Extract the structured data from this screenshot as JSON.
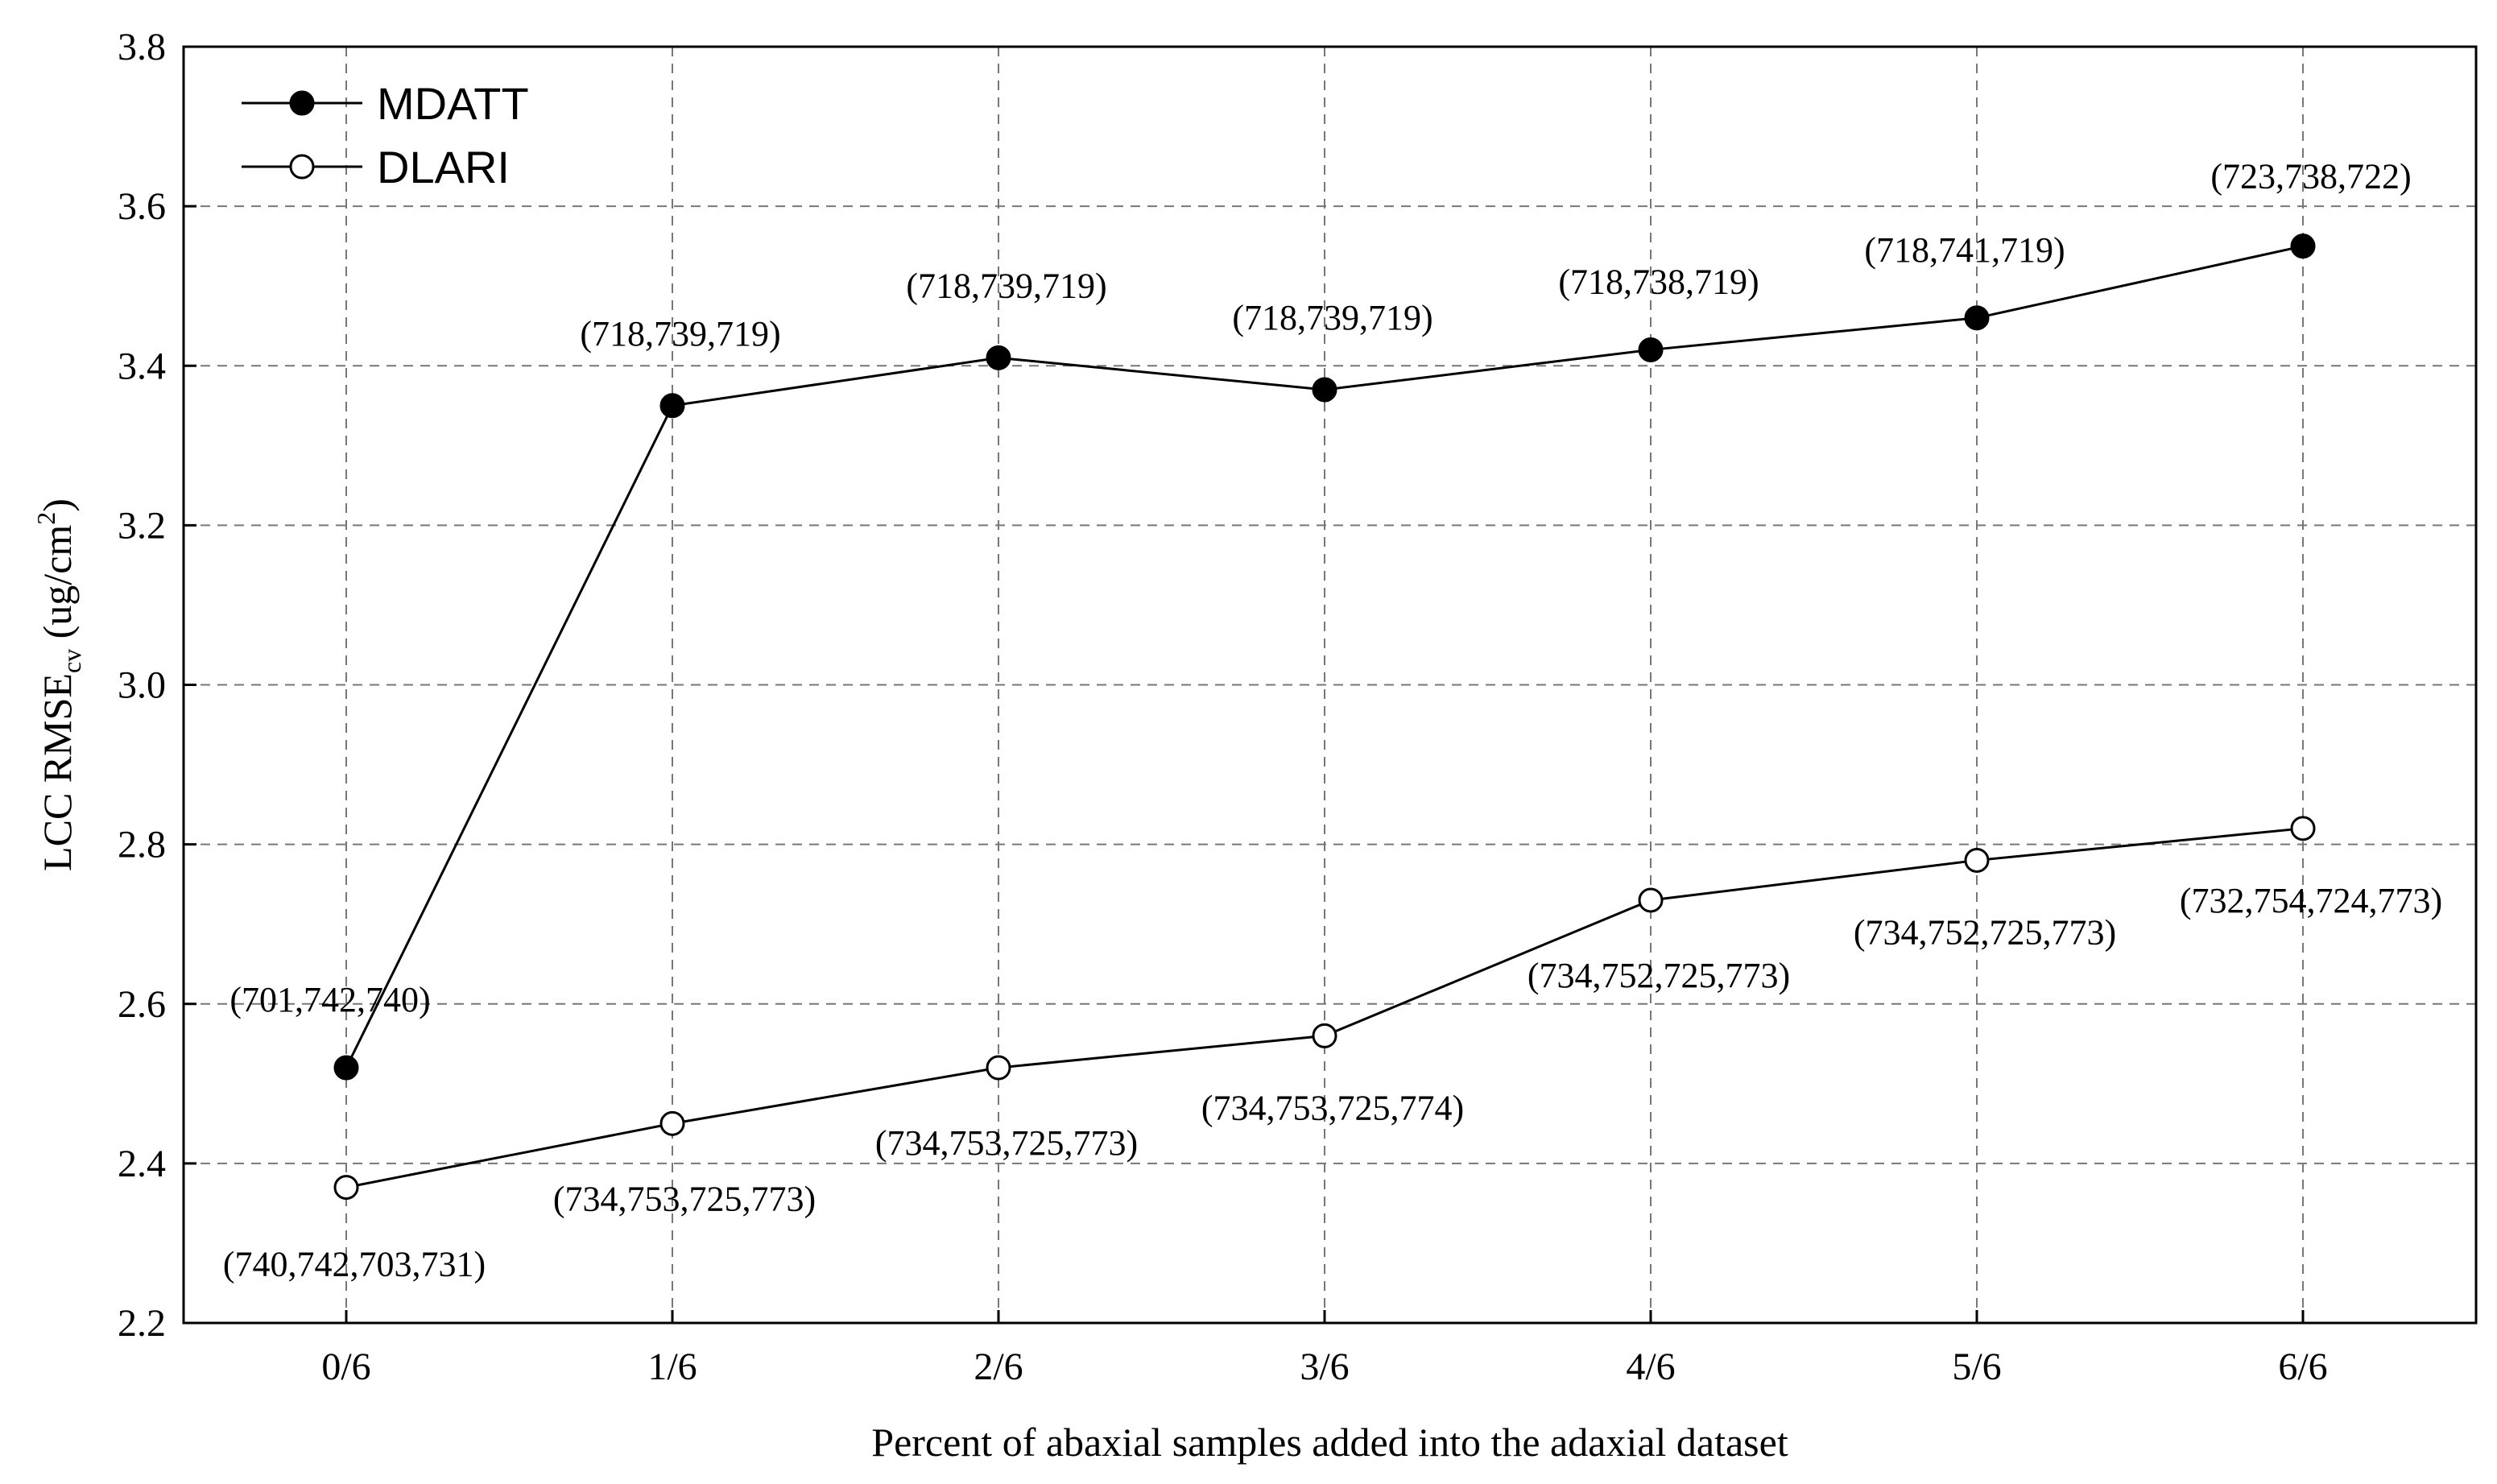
{
  "chart_data": {
    "type": "line",
    "title": "",
    "xlabel": "Percent of abaxial samples added into the adaxial dataset",
    "ylabel": {
      "main": "LCC RMSE",
      "subscript": "cv",
      "unit_open": " (ug/cm",
      "unit_sup": "2",
      "unit_close": ")"
    },
    "categories": [
      "0/6",
      "1/6",
      "2/6",
      "3/6",
      "4/6",
      "5/6",
      "6/6"
    ],
    "ylim": [
      2.2,
      3.8
    ],
    "yticks": [
      "2.2",
      "2.4",
      "2.6",
      "2.8",
      "3.0",
      "3.2",
      "3.4",
      "3.6",
      "3.8"
    ],
    "grid": true,
    "legend_position": "top-left",
    "series": [
      {
        "name": "MDATT",
        "marker": "filled-circle",
        "values": [
          2.52,
          3.35,
          3.41,
          3.37,
          3.42,
          3.46,
          3.55
        ],
        "labels": [
          "(701,742,740)",
          "(718,739,719)",
          "(718,739,719)",
          "(718,739,719)",
          "(718,738,719)",
          "(718,741,719)",
          "(723,738,722)"
        ]
      },
      {
        "name": "DLARI",
        "marker": "open-circle",
        "values": [
          2.37,
          2.45,
          2.52,
          2.56,
          2.73,
          2.78,
          2.82
        ],
        "labels": [
          "(740,742,703,731)",
          "(734,753,725,773)",
          "(734,753,725,773)",
          "(734,753,725,774)",
          "(734,752,725,773)",
          "(734,752,725,773)",
          "(732,754,724,773)"
        ]
      }
    ]
  }
}
